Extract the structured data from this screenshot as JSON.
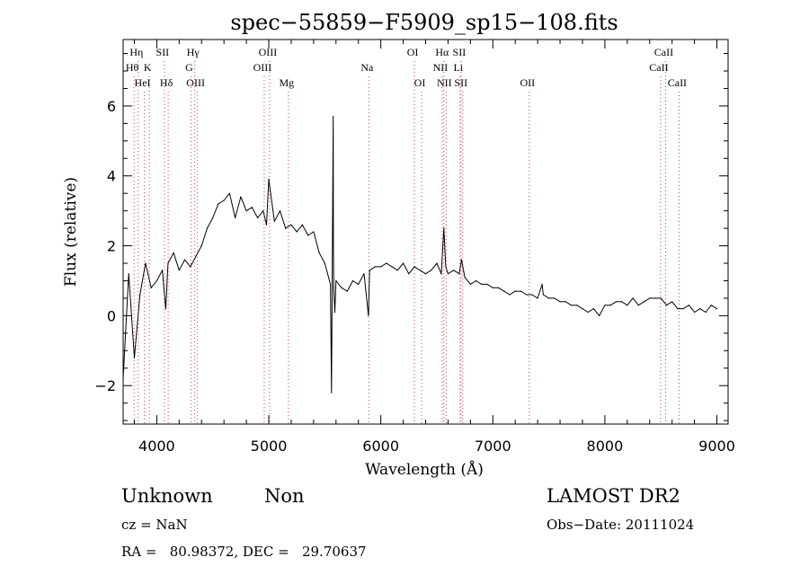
{
  "chart_data": {
    "type": "line",
    "title": "spec−55859−F5909_sp15−108.fits",
    "xlabel": "Wavelength (Å)",
    "ylabel": "Flux (relative)",
    "xlim": [
      3700,
      9100
    ],
    "ylim": [
      -3.1,
      7.9
    ],
    "xticks": [
      4000,
      5000,
      6000,
      7000,
      8000,
      9000
    ],
    "yticks": [
      -2,
      0,
      2,
      4,
      6
    ],
    "grid": false,
    "series": [
      {
        "line_color": "#000000",
        "x": [
          3700,
          3750,
          3800,
          3850,
          3900,
          3950,
          4000,
          4050,
          4080,
          4100,
          4150,
          4200,
          4250,
          4300,
          4350,
          4400,
          4450,
          4500,
          4550,
          4600,
          4650,
          4700,
          4750,
          4800,
          4850,
          4900,
          4950,
          4980,
          5000,
          5050,
          5100,
          5150,
          5200,
          5250,
          5300,
          5350,
          5400,
          5450,
          5500,
          5550,
          5560,
          5575,
          5577,
          5580,
          5590,
          5600,
          5650,
          5700,
          5750,
          5800,
          5850,
          5890,
          5900,
          5950,
          6000,
          6050,
          6100,
          6150,
          6200,
          6250,
          6300,
          6350,
          6400,
          6450,
          6500,
          6540,
          6563,
          6580,
          6600,
          6650,
          6700,
          6720,
          6750,
          6800,
          6850,
          6900,
          6950,
          7000,
          7050,
          7100,
          7150,
          7200,
          7250,
          7300,
          7350,
          7400,
          7440,
          7450,
          7500,
          7550,
          7600,
          7650,
          7700,
          7750,
          7800,
          7850,
          7900,
          7950,
          8000,
          8050,
          8100,
          8150,
          8200,
          8250,
          8300,
          8350,
          8400,
          8450,
          8500,
          8550,
          8600,
          8650,
          8700,
          8750,
          8800,
          8850,
          8900,
          8950,
          9000
        ],
        "y": [
          -1.8,
          1.2,
          -1.2,
          0.6,
          1.5,
          0.8,
          1.0,
          1.3,
          0.2,
          1.5,
          1.8,
          1.3,
          1.6,
          1.4,
          1.7,
          2.0,
          2.5,
          2.8,
          3.2,
          3.3,
          3.5,
          2.8,
          3.4,
          3.0,
          3.1,
          2.8,
          3.0,
          2.6,
          3.9,
          2.7,
          3.0,
          2.5,
          2.6,
          2.4,
          2.6,
          2.3,
          2.4,
          1.8,
          1.5,
          0.9,
          -2.2,
          5.7,
          2.0,
          0.8,
          0.1,
          1.0,
          0.8,
          0.7,
          1.0,
          0.9,
          1.2,
          0.0,
          1.3,
          1.4,
          1.4,
          1.5,
          1.4,
          1.3,
          1.5,
          1.2,
          1.4,
          1.3,
          1.2,
          1.3,
          1.5,
          1.2,
          2.5,
          1.4,
          1.2,
          1.3,
          1.2,
          1.6,
          1.1,
          0.9,
          1.0,
          0.9,
          0.9,
          0.8,
          0.8,
          0.7,
          0.6,
          0.7,
          0.7,
          0.6,
          0.6,
          0.5,
          0.9,
          0.6,
          0.5,
          0.5,
          0.4,
          0.4,
          0.3,
          0.3,
          0.2,
          0.1,
          0.2,
          0.0,
          0.3,
          0.3,
          0.4,
          0.4,
          0.3,
          0.5,
          0.3,
          0.4,
          0.5,
          0.5,
          0.5,
          0.3,
          0.4,
          0.2,
          0.2,
          0.3,
          0.1,
          0.2,
          0.1,
          0.3,
          0.2
        ]
      }
    ],
    "spectral_lines": [
      {
        "name": "Hη",
        "x": 3835,
        "row": 0
      },
      {
        "name": "SII",
        "x": 4068,
        "row": 0
      },
      {
        "name": "Hγ",
        "x": 4340,
        "row": 0
      },
      {
        "name": "OIII",
        "x": 5007,
        "row": 0
      },
      {
        "name": "OI",
        "x": 6300,
        "row": 0
      },
      {
        "name": "Hα",
        "x": 6563,
        "row": 0
      },
      {
        "name": "SII",
        "x": 6716,
        "row": 0
      },
      {
        "name": "CaII",
        "x": 8542,
        "row": 0
      },
      {
        "name": "Hθ",
        "x": 3797,
        "row": 1
      },
      {
        "name": "K",
        "x": 3934,
        "row": 1
      },
      {
        "name": "G",
        "x": 4305,
        "row": 1
      },
      {
        "name": "OIII",
        "x": 4959,
        "row": 1
      },
      {
        "name": "Na",
        "x": 5893,
        "row": 1
      },
      {
        "name": "NII",
        "x": 6548,
        "row": 1
      },
      {
        "name": "Li",
        "x": 6708,
        "row": 1
      },
      {
        "name": "CaII",
        "x": 8498,
        "row": 1
      },
      {
        "name": "HeI",
        "x": 3889,
        "row": 2
      },
      {
        "name": "Hδ",
        "x": 4102,
        "row": 2
      },
      {
        "name": "OIII",
        "x": 4363,
        "row": 2
      },
      {
        "name": "Mg",
        "x": 5175,
        "row": 2
      },
      {
        "name": "OI",
        "x": 6364,
        "row": 2
      },
      {
        "name": "NII",
        "x": 6583,
        "row": 2
      },
      {
        "name": "SII",
        "x": 6731,
        "row": 2
      },
      {
        "name": "OII",
        "x": 7325,
        "row": 2
      },
      {
        "name": "CaII",
        "x": 8662,
        "row": 2
      }
    ]
  },
  "info": {
    "class": "Unknown",
    "subclass": "Non",
    "survey": "LAMOST DR2",
    "cz": "cz = NaN",
    "obs_date": "Obs−Date: 20111024",
    "coords": "RA =   80.98372, DEC =   29.70637"
  }
}
